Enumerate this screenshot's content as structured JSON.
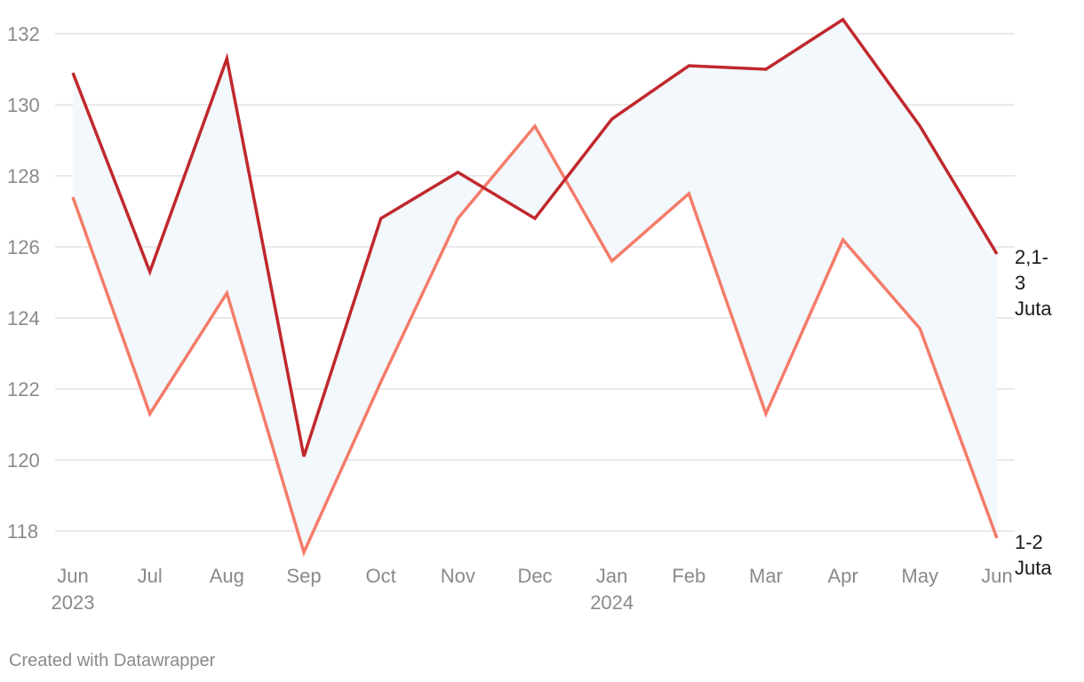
{
  "chart_data": {
    "type": "line",
    "categories": [
      "Jun",
      "Jul",
      "Aug",
      "Sep",
      "Oct",
      "Nov",
      "Dec",
      "Jan",
      "Feb",
      "Mar",
      "Apr",
      "May",
      "Jun"
    ],
    "category_years": [
      "2023",
      "",
      "",
      "",
      "",
      "",
      "",
      "2024",
      "",
      "",
      "",
      "",
      ""
    ],
    "series": [
      {
        "name": "2,1-3 Juta",
        "label_lines": [
          "2,1-",
          "3",
          "Juta"
        ],
        "color": "#c0282d",
        "values": [
          130.9,
          125.3,
          131.3,
          120.1,
          126.8,
          128.1,
          126.8,
          129.6,
          131.1,
          131.0,
          132.4,
          129.4,
          125.8
        ]
      },
      {
        "name": "1-2 Juta",
        "label_lines": [
          "1-2",
          "Juta"
        ],
        "color": "#f47c6a",
        "values": [
          127.4,
          121.3,
          124.7,
          117.4,
          122.2,
          126.8,
          129.4,
          125.6,
          127.5,
          121.3,
          126.2,
          123.7,
          117.8
        ]
      }
    ],
    "area_fill_color": "#f2f8fc",
    "yticks": [
      118,
      120,
      122,
      124,
      126,
      128,
      130,
      132
    ],
    "ylim": [
      117.05,
      132.95
    ],
    "grid": true,
    "title": "",
    "xlabel": "",
    "ylabel": ""
  },
  "footer": {
    "credit": "Created with Datawrapper"
  }
}
